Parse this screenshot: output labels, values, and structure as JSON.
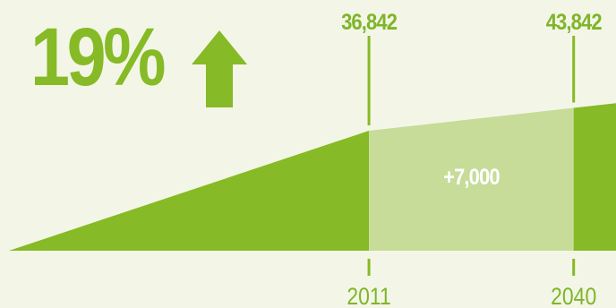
{
  "headline": {
    "value": "19%",
    "icon": "up-arrow-icon"
  },
  "colors": {
    "background": "#f3f6e6",
    "primary_green": "#86ba26",
    "light_green": "#c6dc98",
    "label_green": "#7fb52a",
    "delta_text": "#ffffff"
  },
  "chart_data": {
    "type": "area",
    "x": [
      1960,
      2011,
      2040,
      2046
    ],
    "y": [
      0,
      36842,
      43842,
      45290
    ],
    "markers": [
      {
        "year": "2011",
        "value": "36,842"
      },
      {
        "year": "2040",
        "value": "43,842"
      }
    ],
    "highlight": {
      "from": 2011,
      "to": 2040,
      "label": "+7,000"
    },
    "title": "",
    "xlabel": "",
    "ylabel": ""
  }
}
